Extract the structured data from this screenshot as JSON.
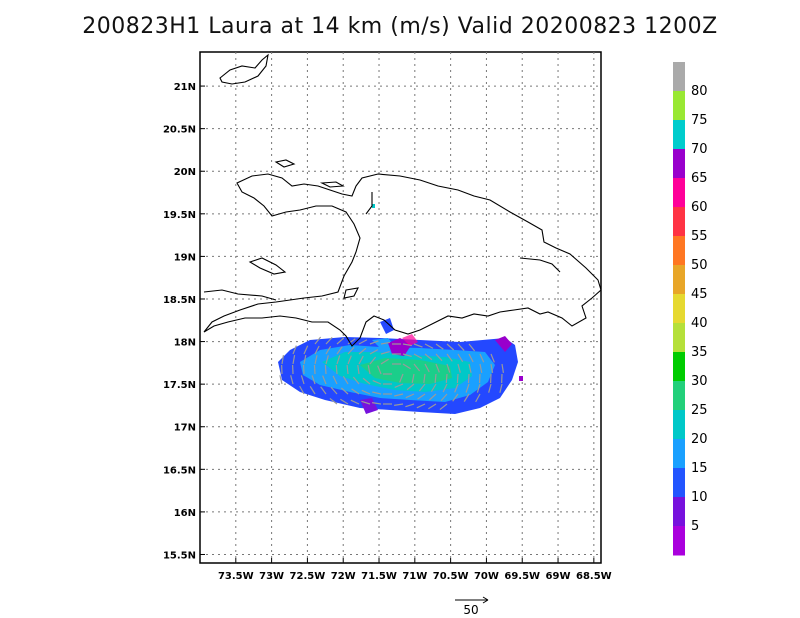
{
  "title": "200823H1 Laura at 14 km (m/s) Valid 20200823 1200Z",
  "axes": {
    "x_ticks": [
      "73.5W",
      "73W",
      "72.5W",
      "72W",
      "71.5W",
      "71W",
      "70.5W",
      "70W",
      "69.5W",
      "69W",
      "68.5W"
    ],
    "y_ticks": [
      "21N",
      "20.5N",
      "20N",
      "19.5N",
      "19N",
      "18.5N",
      "18N",
      "17.5N",
      "17N",
      "16.5N",
      "16N",
      "15.5N"
    ],
    "lon_range": [
      -74.0,
      -68.4
    ],
    "lat_range": [
      15.4,
      21.4
    ],
    "grid": true
  },
  "colorbar": {
    "labels": [
      "80",
      "75",
      "70",
      "65",
      "60",
      "55",
      "50",
      "45",
      "40",
      "35",
      "30",
      "25",
      "20",
      "15",
      "10",
      "5"
    ],
    "colors": [
      "#aaaaaa",
      "#99e833",
      "#00cccc",
      "#9900cc",
      "#ff0099",
      "#ff3344",
      "#ff7722",
      "#e8a628",
      "#e6d930",
      "#b5e03a",
      "#00cc00",
      "#22d07a",
      "#00c8c8",
      "#1aa0ff",
      "#2255ff",
      "#7711dd",
      "#aa00dd"
    ]
  },
  "reference_vector": {
    "label": "50",
    "units": "m/s"
  }
}
